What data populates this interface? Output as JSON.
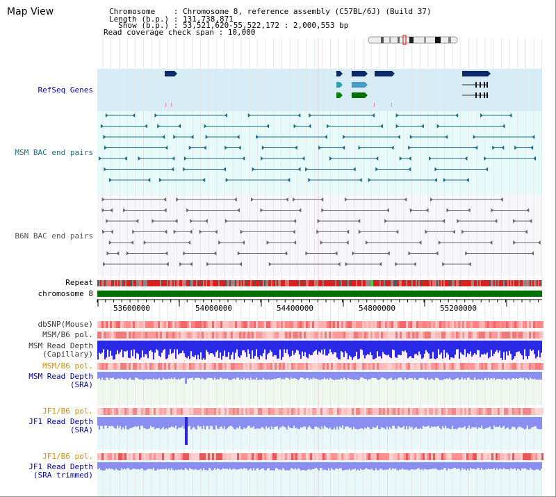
{
  "title": "Map View",
  "header": {
    "chromosome": "Chromosome    : Chromosome 8, reference assembly (C57BL/6J) (Build 37)",
    "length": "Length (b.p.) : 131,738,871",
    "show": "  Show (b.p.) : 53,521,620-55,522,172 : 2,000,553 bp",
    "coverage": "Read coverage check span : 10,000"
  },
  "tracks": {
    "refseq": "RefSeq Genes",
    "msm_bac": "MSM BAC end pairs",
    "b6n_bac": "B6N BAC end pairs",
    "repeat": "Repeat",
    "chromosome": "chromosome 8",
    "dbsnp": "dbSNP(Mouse)",
    "msm_pol1": "MSM/B6 pol.",
    "msm_depth_cap_1": "MSM Read Depth",
    "msm_depth_cap_2": "(Capillary)",
    "msm_pol2": "MSM/B6 pol.",
    "msm_depth_sra_1": "MSM Read Depth",
    "msm_depth_sra_2": "(SRA)",
    "jf1_pol1": "JF1/B6 pol.",
    "jf1_depth_sra_1": "JF1 Read Depth",
    "jf1_depth_sra_2": "(SRA)",
    "jf1_pol2": "JF1/B6 pol.",
    "jf1_depth_trim_1": "JF1 Read Depth",
    "jf1_depth_trim_2": "(SRA trimmed)"
  },
  "axis": {
    "ticks": [
      "53600000",
      "54000000",
      "54400000",
      "54800000",
      "55200000"
    ]
  },
  "colors": {
    "refseq_bg": "#d6edf7",
    "msm_bg": "#e7fafa",
    "b6n_bg": "#f7f7fa",
    "chromosome": "#007000",
    "depth_blue": "#2a2ae6",
    "depth_sra": "#8a8ef0",
    "pol_red": "#f06060"
  }
}
